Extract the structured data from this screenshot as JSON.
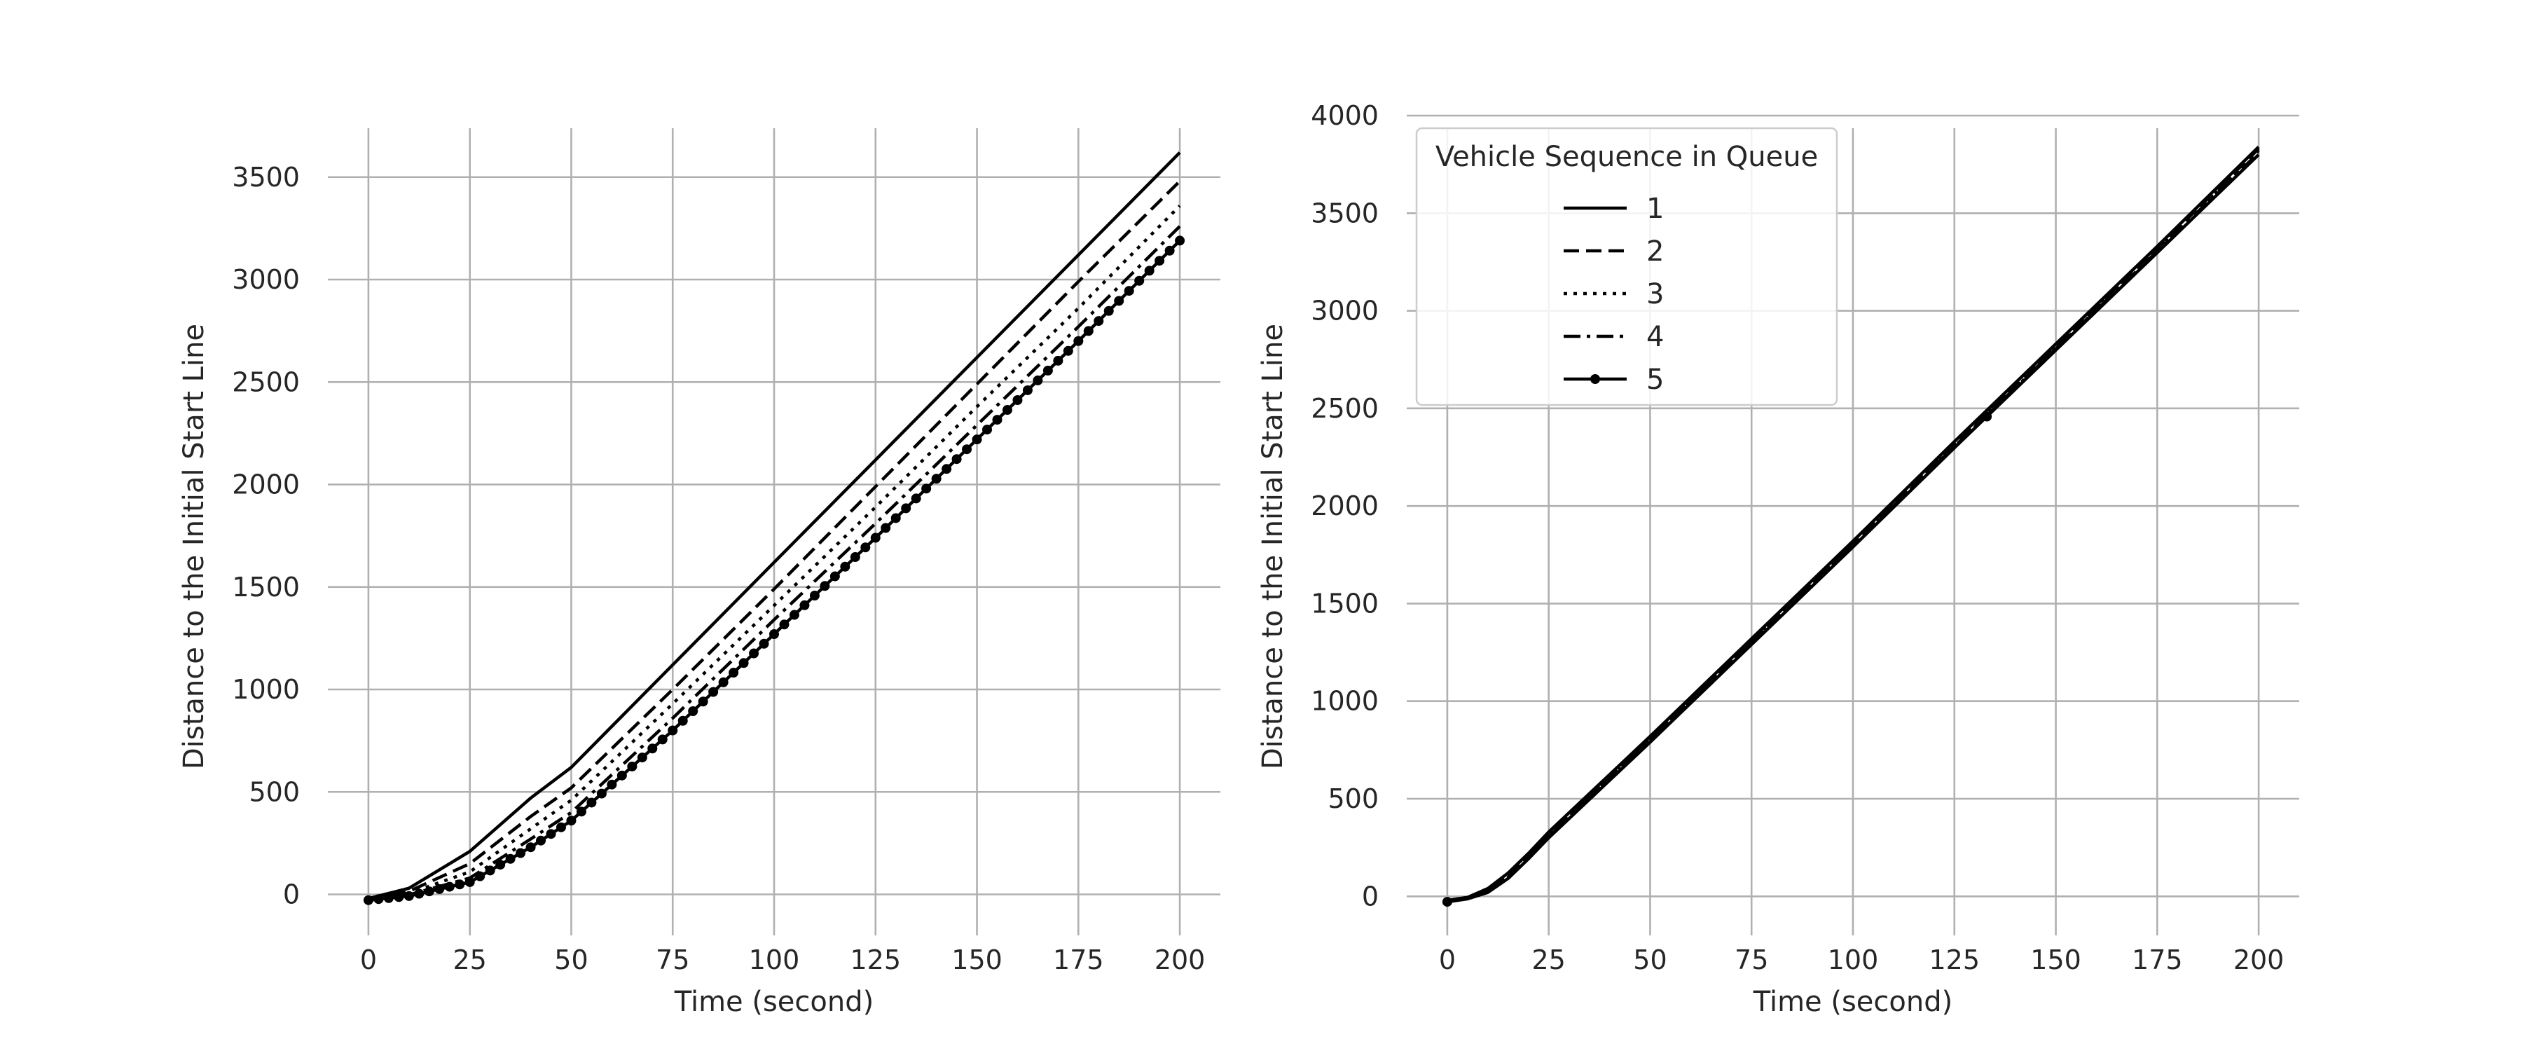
{
  "chart_data": [
    {
      "type": "line",
      "title": "",
      "xlabel": "Time (second)",
      "ylabel": "Distance to the Initial Start Line",
      "xlim": [
        -10,
        210
      ],
      "ylim": [
        -200,
        3800
      ],
      "xticks": [
        0,
        25,
        50,
        75,
        100,
        125,
        150,
        175,
        200
      ],
      "yticks": [
        0,
        500,
        1000,
        1500,
        2000,
        2500,
        3000,
        3500
      ],
      "grid": true,
      "legend": "none",
      "series": [
        {
          "name": "1",
          "style": "solid",
          "x": [
            0,
            10,
            25,
            40,
            50,
            75,
            100,
            125,
            150,
            175,
            200
          ],
          "y": [
            -20,
            30,
            210,
            470,
            620,
            1120,
            1620,
            2120,
            2620,
            3120,
            3620
          ]
        },
        {
          "name": "2",
          "style": "dashed",
          "x": [
            0,
            10,
            25,
            40,
            50,
            75,
            100,
            125,
            150,
            175,
            200
          ],
          "y": [
            -22,
            15,
            150,
            380,
            520,
            1000,
            1490,
            1990,
            2490,
            2990,
            3480
          ]
        },
        {
          "name": "3",
          "style": "dotted",
          "x": [
            0,
            10,
            25,
            40,
            50,
            75,
            100,
            125,
            150,
            175,
            200
          ],
          "y": [
            -24,
            5,
            110,
            320,
            460,
            930,
            1410,
            1890,
            2380,
            2860,
            3360
          ]
        },
        {
          "name": "4",
          "style": "dashdot",
          "x": [
            0,
            10,
            25,
            40,
            50,
            75,
            100,
            125,
            150,
            175,
            200
          ],
          "y": [
            -26,
            -2,
            80,
            270,
            400,
            860,
            1340,
            1810,
            2290,
            2770,
            3260
          ]
        },
        {
          "name": "5",
          "style": "dotline",
          "x": [
            0,
            10,
            25,
            40,
            50,
            75,
            100,
            125,
            150,
            175,
            200
          ],
          "y": [
            -28,
            -8,
            60,
            230,
            360,
            800,
            1270,
            1740,
            2220,
            2700,
            3190
          ]
        }
      ]
    },
    {
      "type": "line",
      "title": "",
      "xlabel": "Time (second)",
      "ylabel": "Distance to the Initial Start Line",
      "xlim": [
        -10,
        210
      ],
      "ylim": [
        -200,
        4000
      ],
      "xticks": [
        0,
        25,
        50,
        75,
        100,
        125,
        150,
        175,
        200
      ],
      "yticks": [
        0,
        500,
        1000,
        1500,
        2000,
        2500,
        3000,
        3500,
        4000
      ],
      "grid": true,
      "legend": "top-left",
      "legend_title": "Vehicle Sequence in Queue",
      "series": [
        {
          "name": "1",
          "style": "solid",
          "x": [
            0,
            5,
            10,
            15,
            20,
            25,
            50,
            75,
            100,
            125,
            150,
            175,
            200
          ],
          "y": [
            -20,
            -5,
            40,
            120,
            220,
            330,
            820,
            1320,
            1820,
            2330,
            2830,
            3330,
            3840
          ]
        },
        {
          "name": "2",
          "style": "dashed",
          "x": [
            0,
            5,
            10,
            15,
            20,
            25,
            50,
            75,
            100,
            125,
            150,
            175,
            200
          ],
          "y": [
            -22,
            -7,
            35,
            112,
            212,
            322,
            812,
            1312,
            1812,
            2320,
            2820,
            3320,
            3830
          ]
        },
        {
          "name": "3",
          "style": "dotted",
          "x": [
            0,
            5,
            10,
            15,
            20,
            25,
            50,
            75,
            100,
            125,
            150,
            175,
            200
          ],
          "y": [
            -24,
            -9,
            30,
            105,
            205,
            315,
            805,
            1305,
            1805,
            2312,
            2812,
            3312,
            3820
          ]
        },
        {
          "name": "4",
          "style": "dashdot",
          "x": [
            0,
            5,
            10,
            15,
            20,
            25,
            50,
            75,
            100,
            125,
            150,
            175,
            200
          ],
          "y": [
            -26,
            -11,
            25,
            98,
            198,
            308,
            798,
            1298,
            1798,
            2305,
            2805,
            3305,
            3810
          ]
        },
        {
          "name": "5",
          "style": "dotline",
          "x": [
            0,
            5,
            10,
            15,
            20,
            25,
            50,
            75,
            100,
            125,
            150,
            175,
            200
          ],
          "y": [
            -28,
            -13,
            20,
            92,
            192,
            300,
            790,
            1290,
            1790,
            2298,
            2798,
            3298,
            3800
          ]
        }
      ]
    }
  ]
}
